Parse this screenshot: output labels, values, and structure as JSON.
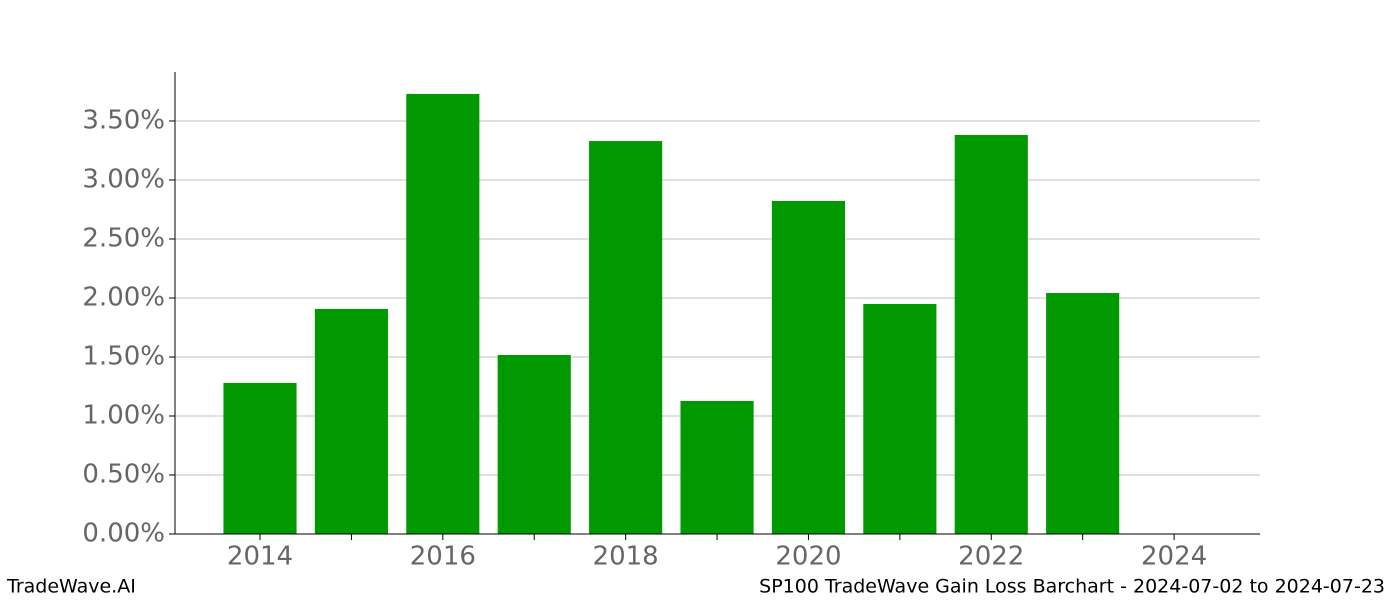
{
  "chart_data": {
    "type": "bar",
    "x": [
      2014,
      2015,
      2016,
      2017,
      2018,
      2019,
      2020,
      2021,
      2022,
      2023
    ],
    "values": [
      1.28,
      1.907,
      3.729,
      1.517,
      3.33,
      1.127,
      2.822,
      1.949,
      3.381,
      2.042
    ],
    "color": "#009900",
    "xlim": [
      2013.07,
      2024.94
    ],
    "xticks": [
      2014,
      2016,
      2018,
      2020,
      2022,
      2024
    ],
    "xminorticks": [
      2015,
      2017,
      2019,
      2021,
      2023
    ],
    "ylim": [
      0,
      3.915
    ],
    "yticks": [
      {
        "value": 0,
        "label": "0.00%"
      },
      {
        "value": 0.5,
        "label": "0.50%"
      },
      {
        "value": 1,
        "label": "1.00%"
      },
      {
        "value": 1.5,
        "label": "1.50%"
      },
      {
        "value": 2,
        "label": "2.00%"
      },
      {
        "value": 2.5,
        "label": "2.50%"
      },
      {
        "value": 3,
        "label": "3.00%"
      },
      {
        "value": 3.5,
        "label": "3.50%"
      }
    ],
    "grid": true,
    "footer_left": "TradeWave.AI",
    "footer_right": "SP100 TradeWave Gain Loss Barchart - 2024-07-02 to 2024-07-23"
  }
}
